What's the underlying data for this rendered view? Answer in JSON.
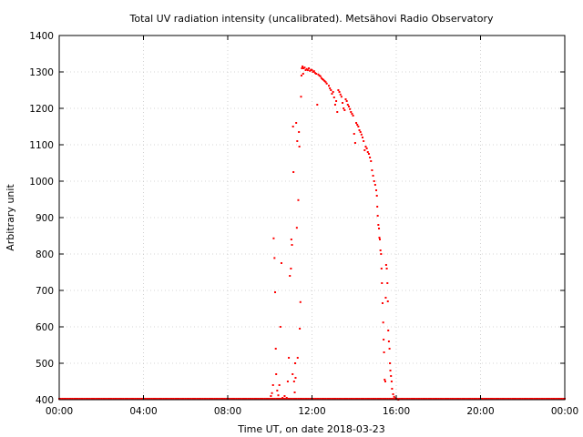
{
  "chart_data": {
    "type": "scatter",
    "title": "Total UV radiation intensity (uncalibrated). Metsähovi Radio Observatory",
    "xlabel": "Time UT, on date 2018-03-23",
    "ylabel": "Arbitrary unit",
    "xlim": [
      0,
      24
    ],
    "ylim": [
      400,
      1400
    ],
    "xticks": [
      0,
      4,
      8,
      12,
      16,
      20,
      24
    ],
    "xtick_labels": [
      "00:00",
      "04:00",
      "08:00",
      "12:00",
      "16:00",
      "20:00",
      "00:00"
    ],
    "yticks": [
      400,
      500,
      600,
      700,
      800,
      900,
      1000,
      1100,
      1200,
      1300,
      1400
    ],
    "grid": true,
    "colors": {
      "points": "#ff0000",
      "grid": "#c8c8c8",
      "axis": "#000000"
    },
    "series": [
      {
        "baseline_value": 400,
        "baseline_range": [
          0,
          24
        ],
        "points": [
          [
            10.05,
            410
          ],
          [
            10.1,
            418
          ],
          [
            10.15,
            440
          ],
          [
            10.18,
            843
          ],
          [
            10.22,
            789
          ],
          [
            10.25,
            695
          ],
          [
            10.28,
            540
          ],
          [
            10.3,
            470
          ],
          [
            10.35,
            425
          ],
          [
            10.4,
            412
          ],
          [
            10.45,
            440
          ],
          [
            10.5,
            600
          ],
          [
            10.55,
            775
          ],
          [
            10.6,
            405
          ],
          [
            10.7,
            410
          ],
          [
            10.8,
            405
          ],
          [
            10.85,
            450
          ],
          [
            10.9,
            515
          ],
          [
            10.95,
            740
          ],
          [
            11.0,
            760
          ],
          [
            11.02,
            840
          ],
          [
            11.05,
            825
          ],
          [
            11.08,
            470
          ],
          [
            11.1,
            1150
          ],
          [
            11.12,
            1025
          ],
          [
            11.15,
            450
          ],
          [
            11.18,
            420
          ],
          [
            11.2,
            500
          ],
          [
            11.22,
            460
          ],
          [
            11.25,
            1160
          ],
          [
            11.28,
            872
          ],
          [
            11.3,
            1110
          ],
          [
            11.32,
            515
          ],
          [
            11.35,
            948
          ],
          [
            11.38,
            1135
          ],
          [
            11.4,
            1095
          ],
          [
            11.42,
            595
          ],
          [
            11.45,
            668
          ],
          [
            11.48,
            1232
          ],
          [
            11.5,
            1290
          ],
          [
            11.52,
            1310
          ],
          [
            11.55,
            1315
          ],
          [
            11.58,
            1295
          ],
          [
            11.6,
            1310
          ],
          [
            11.65,
            1312
          ],
          [
            11.7,
            1305
          ],
          [
            11.75,
            1308
          ],
          [
            11.8,
            1305
          ],
          [
            11.85,
            1310
          ],
          [
            11.9,
            1303
          ],
          [
            11.95,
            1306
          ],
          [
            12.0,
            1305
          ],
          [
            12.05,
            1300
          ],
          [
            12.1,
            1302
          ],
          [
            12.15,
            1297
          ],
          [
            12.2,
            1295
          ],
          [
            12.25,
            1210
          ],
          [
            12.3,
            1293
          ],
          [
            12.35,
            1290
          ],
          [
            12.4,
            1288
          ],
          [
            12.45,
            1283
          ],
          [
            12.5,
            1280
          ],
          [
            12.55,
            1278
          ],
          [
            12.6,
            1275
          ],
          [
            12.65,
            1272
          ],
          [
            12.7,
            1268
          ],
          [
            12.8,
            1262
          ],
          [
            12.85,
            1255
          ],
          [
            12.9,
            1250
          ],
          [
            12.95,
            1240
          ],
          [
            13.0,
            1245
          ],
          [
            13.05,
            1230
          ],
          [
            13.1,
            1210
          ],
          [
            13.15,
            1220
          ],
          [
            13.2,
            1190
          ],
          [
            13.25,
            1250
          ],
          [
            13.3,
            1245
          ],
          [
            13.35,
            1238
          ],
          [
            13.4,
            1232
          ],
          [
            13.45,
            1215
          ],
          [
            13.5,
            1200
          ],
          [
            13.55,
            1195
          ],
          [
            13.6,
            1225
          ],
          [
            13.65,
            1220
          ],
          [
            13.7,
            1210
          ],
          [
            13.75,
            1205
          ],
          [
            13.8,
            1198
          ],
          [
            13.85,
            1190
          ],
          [
            13.9,
            1185
          ],
          [
            13.95,
            1180
          ],
          [
            14.0,
            1130
          ],
          [
            14.05,
            1105
          ],
          [
            14.1,
            1160
          ],
          [
            14.15,
            1155
          ],
          [
            14.2,
            1150
          ],
          [
            14.25,
            1140
          ],
          [
            14.3,
            1135
          ],
          [
            14.35,
            1128
          ],
          [
            14.4,
            1120
          ],
          [
            14.45,
            1110
          ],
          [
            14.5,
            1085
          ],
          [
            14.55,
            1095
          ],
          [
            14.6,
            1090
          ],
          [
            14.65,
            1080
          ],
          [
            14.7,
            1075
          ],
          [
            14.75,
            1065
          ],
          [
            14.8,
            1055
          ],
          [
            14.85,
            1030
          ],
          [
            14.9,
            1015
          ],
          [
            14.95,
            1000
          ],
          [
            15.0,
            990
          ],
          [
            15.05,
            975
          ],
          [
            15.08,
            960
          ],
          [
            15.1,
            930
          ],
          [
            15.12,
            905
          ],
          [
            15.15,
            880
          ],
          [
            15.18,
            870
          ],
          [
            15.2,
            845
          ],
          [
            15.22,
            840
          ],
          [
            15.25,
            810
          ],
          [
            15.28,
            800
          ],
          [
            15.3,
            760
          ],
          [
            15.32,
            720
          ],
          [
            15.35,
            665
          ],
          [
            15.38,
            612
          ],
          [
            15.4,
            565
          ],
          [
            15.42,
            530
          ],
          [
            15.45,
            455
          ],
          [
            15.48,
            450
          ],
          [
            15.5,
            680
          ],
          [
            15.52,
            770
          ],
          [
            15.55,
            760
          ],
          [
            15.58,
            720
          ],
          [
            15.6,
            670
          ],
          [
            15.62,
            590
          ],
          [
            15.65,
            560
          ],
          [
            15.68,
            540
          ],
          [
            15.7,
            500
          ],
          [
            15.72,
            480
          ],
          [
            15.75,
            465
          ],
          [
            15.78,
            450
          ],
          [
            15.8,
            430
          ],
          [
            15.85,
            415
          ],
          [
            15.9,
            408
          ],
          [
            15.95,
            404
          ],
          [
            16.0,
            402
          ],
          [
            16.05,
            401
          ],
          [
            16.1,
            400
          ]
        ]
      }
    ]
  }
}
